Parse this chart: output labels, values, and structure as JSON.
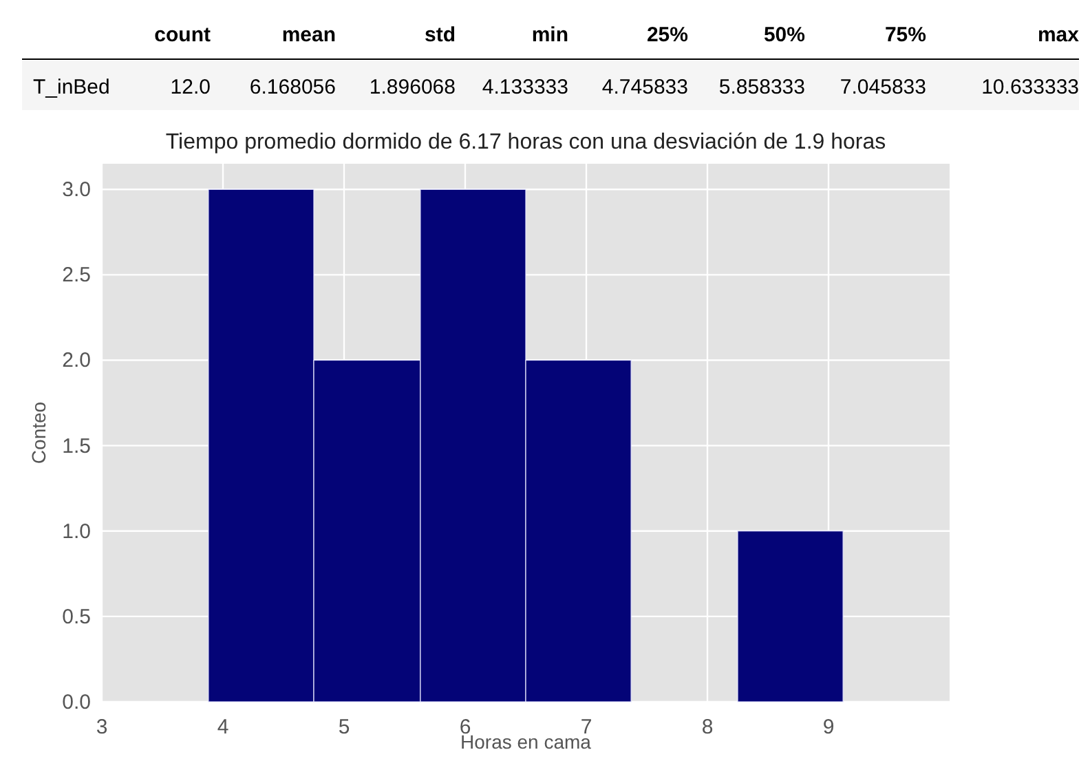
{
  "chart_data": [
    {
      "type": "other",
      "categories": [
        "count",
        "mean",
        "std",
        "min",
        "25%",
        "50%",
        "75%",
        "max"
      ],
      "y_categories": [
        "T_inBed"
      ],
      "cell_labels": [
        [
          "12.0",
          "6.168056",
          "1.896068",
          "4.133333",
          "4.745833",
          "5.858333",
          "7.045833",
          "10.633333"
        ]
      ]
    },
    {
      "type": "histogram",
      "title": "Tiempo promedio dormido de 6.17 horas con una desviación de 1.9 horas",
      "xlabel": "Horas en cama",
      "ylabel": "Conteo",
      "bins": [
        3.88,
        4.75,
        5.63,
        6.5,
        7.37,
        8.25,
        9.12
      ],
      "values": [
        3,
        2,
        3,
        2,
        0,
        1
      ],
      "color": "#040477",
      "xlim": [
        3,
        10
      ],
      "xticks": [
        3,
        4,
        5,
        6,
        7,
        8,
        9
      ],
      "ylim": [
        0,
        3.15
      ],
      "yticks": [
        {
          "value": 0,
          "label": "0.0"
        },
        {
          "value": 0.5,
          "label": "0.5"
        },
        {
          "value": 1,
          "label": "1.0"
        },
        {
          "value": 1.5,
          "label": "1.5"
        },
        {
          "value": 2,
          "label": "2.0"
        },
        {
          "value": 2.5,
          "label": "2.5"
        },
        {
          "value": 3,
          "label": "3.0"
        }
      ],
      "grid": true
    }
  ]
}
